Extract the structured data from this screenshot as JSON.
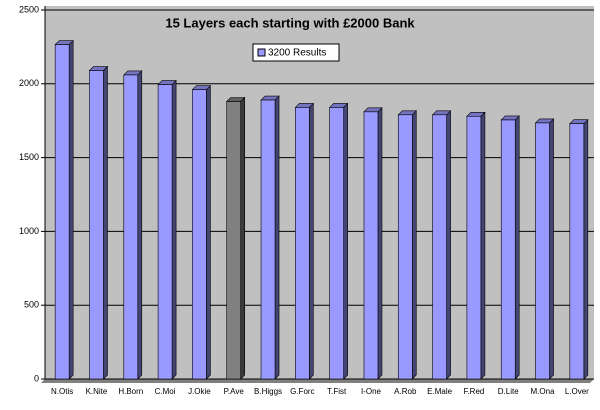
{
  "chart_data": {
    "type": "bar",
    "title": "15 Layers each starting with £2000 Bank",
    "categories": [
      "N.Otis",
      "K.Nite",
      "H.Born",
      "C.Moi",
      "J.Okie",
      "P.Ave",
      "B.Higgs",
      "G.Forc",
      "T.Fist",
      "I-One",
      "A.Rob",
      "E.Male",
      "F.Red",
      "D.Lite",
      "M.Ona",
      "L.Over"
    ],
    "series": [
      {
        "name": "3200 Results",
        "color": "#9999ff",
        "colors": [
          "#9999ff",
          "#9999ff",
          "#9999ff",
          "#9999ff",
          "#9999ff",
          "#808080",
          "#9999ff",
          "#9999ff",
          "#9999ff",
          "#9999ff",
          "#9999ff",
          "#9999ff",
          "#9999ff",
          "#9999ff",
          "#9999ff",
          "#9999ff"
        ],
        "values": [
          2265,
          2090,
          2060,
          1995,
          1960,
          1880,
          1890,
          1840,
          1840,
          1810,
          1790,
          1790,
          1780,
          1755,
          1735,
          1730
        ]
      }
    ],
    "ylim": [
      0,
      2500
    ],
    "yticks": [
      0,
      500,
      1000,
      1500,
      2000,
      2500
    ],
    "grid": true,
    "legend": "top"
  }
}
